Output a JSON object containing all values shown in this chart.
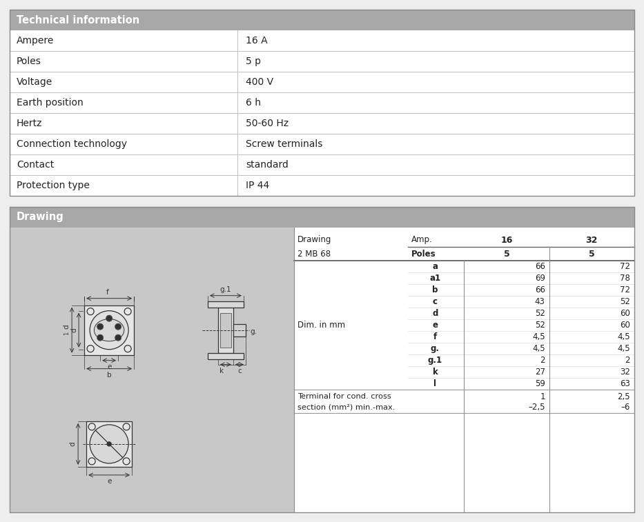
{
  "tech_title": "Technical information",
  "tech_rows": [
    [
      "Ampere",
      "16 A"
    ],
    [
      "Poles",
      "5 p"
    ],
    [
      "Voltage",
      "400 V"
    ],
    [
      "Earth position",
      "6 h"
    ],
    [
      "Hertz",
      "50-60 Hz"
    ],
    [
      "Connection technology",
      "Screw terminals"
    ],
    [
      "Contact",
      "standard"
    ],
    [
      "Protection type",
      "IP 44"
    ]
  ],
  "drawing_title": "Drawing",
  "draw_col_headers": [
    "Drawing",
    "Amp.",
    "16",
    "32"
  ],
  "draw_col_headers2": [
    "2 MB 68",
    "Poles",
    "5",
    "5"
  ],
  "draw_rows": [
    [
      "Dim. in mm",
      "a",
      "66",
      "72"
    ],
    [
      "",
      "a1",
      "69",
      "78"
    ],
    [
      "",
      "b",
      "66",
      "72"
    ],
    [
      "",
      "c",
      "43",
      "52"
    ],
    [
      "",
      "d",
      "52",
      "60"
    ],
    [
      "",
      "e",
      "52",
      "60"
    ],
    [
      "",
      "f",
      "4,5",
      "4,5"
    ],
    [
      "",
      "g.",
      "4,5",
      "4,5"
    ],
    [
      "",
      "g.1",
      "2",
      "2"
    ],
    [
      "",
      "k",
      "27",
      "32"
    ],
    [
      "",
      "l",
      "59",
      "63"
    ]
  ],
  "terminal_label": [
    "Terminal for cond. cross",
    "section (mm²) min.-max."
  ],
  "terminal_16": [
    "1",
    "–2,5"
  ],
  "terminal_32": [
    "2,5",
    "–6"
  ],
  "header_bg": "#a8a8a8",
  "header_fg": "#ffffff",
  "body_bg": "#ffffff",
  "draw_bg": "#c8c8c8",
  "border_dark": "#888888",
  "border_light": "#cccccc",
  "text_dark": "#222222",
  "text_mid": "#444444"
}
